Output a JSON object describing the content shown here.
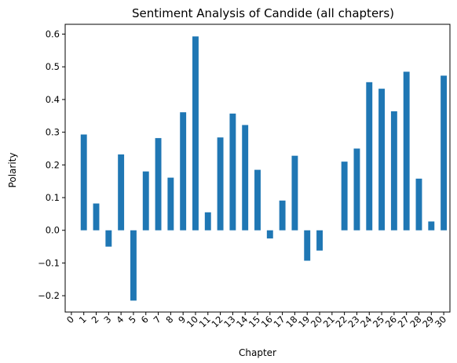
{
  "chart_data": {
    "type": "bar",
    "title": "Sentiment Analysis of Candide (all chapters)",
    "xlabel": "Chapter",
    "ylabel": "Polarity",
    "categories": [
      "0",
      "1",
      "2",
      "3",
      "4",
      "5",
      "6",
      "7",
      "8",
      "9",
      "10",
      "11",
      "12",
      "13",
      "14",
      "15",
      "16",
      "17",
      "18",
      "19",
      "20",
      "21",
      "22",
      "23",
      "24",
      "25",
      "26",
      "27",
      "28",
      "29",
      "30"
    ],
    "values": [
      0.0,
      0.293,
      0.082,
      -0.05,
      0.232,
      -0.215,
      0.18,
      0.282,
      0.161,
      0.361,
      0.593,
      0.055,
      0.284,
      0.357,
      0.322,
      0.185,
      -0.025,
      0.091,
      0.228,
      -0.093,
      -0.062,
      0.0,
      0.21,
      0.25,
      0.453,
      0.433,
      0.364,
      0.485,
      0.158,
      0.027,
      0.473
    ],
    "ylim": [
      -0.25,
      0.63
    ],
    "yticks": [
      -0.2,
      -0.1,
      0.0,
      0.1,
      0.2,
      0.3,
      0.4,
      0.5,
      0.6
    ],
    "ytick_labels": [
      "−0.2",
      "−0.1",
      "0.0",
      "0.1",
      "0.2",
      "0.3",
      "0.4",
      "0.5",
      "0.6"
    ],
    "bar_color": "#1f77b4",
    "grid": false,
    "legend": "none"
  }
}
